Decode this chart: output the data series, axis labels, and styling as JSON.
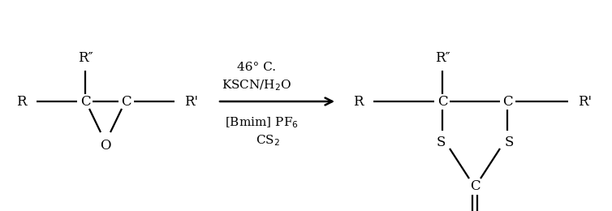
{
  "bg_color": "#ffffff",
  "text_color": "#000000",
  "figsize": [
    7.54,
    2.6
  ],
  "dpi": 100,
  "font_size": 12,
  "font_size_reagent": 11,
  "lw": 1.6,
  "reagents": [
    "CS$_2$",
    "[Bmim] PF$_6$",
    "KSCN/H$_2$O",
    "46° C."
  ]
}
